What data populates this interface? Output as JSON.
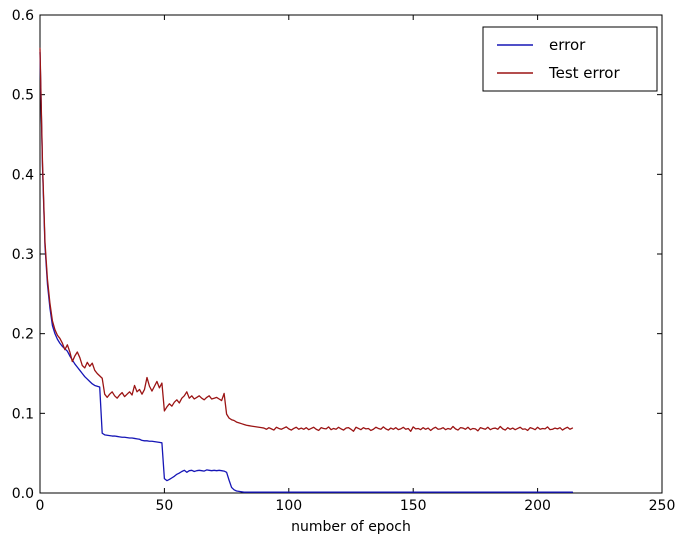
{
  "chart_data": {
    "type": "line",
    "xlabel": "number of epoch",
    "ylabel": "",
    "xlim": [
      0,
      250
    ],
    "ylim": [
      0.0,
      0.6
    ],
    "x_ticks": [
      0,
      50,
      100,
      150,
      200,
      250
    ],
    "x_tick_labels": [
      "0",
      "50",
      "100",
      "150",
      "200",
      "250"
    ],
    "y_ticks": [
      0.0,
      0.1,
      0.2,
      0.3,
      0.4,
      0.5,
      0.6
    ],
    "y_tick_labels": [
      "0.0",
      "0.1",
      "0.2",
      "0.3",
      "0.4",
      "0.5",
      "0.6"
    ],
    "grid": false,
    "legend_position": "upper right",
    "x_step": 1,
    "x_start": 0,
    "series": [
      {
        "name": "error",
        "color": "#1616b6",
        "values": [
          0.553,
          0.41,
          0.31,
          0.262,
          0.232,
          0.21,
          0.2,
          0.193,
          0.188,
          0.184,
          0.181,
          0.178,
          0.172,
          0.167,
          0.162,
          0.158,
          0.154,
          0.15,
          0.146,
          0.143,
          0.14,
          0.137,
          0.135,
          0.134,
          0.133,
          0.075,
          0.073,
          0.0725,
          0.072,
          0.0715,
          0.0715,
          0.071,
          0.0705,
          0.07,
          0.07,
          0.0695,
          0.069,
          0.069,
          0.0685,
          0.068,
          0.0675,
          0.066,
          0.0655,
          0.0655,
          0.065,
          0.065,
          0.0645,
          0.064,
          0.0635,
          0.063,
          0.018,
          0.0155,
          0.017,
          0.019,
          0.021,
          0.0235,
          0.025,
          0.027,
          0.0285,
          0.026,
          0.028,
          0.0285,
          0.027,
          0.028,
          0.0285,
          0.028,
          0.0275,
          0.029,
          0.0285,
          0.028,
          0.0285,
          0.028,
          0.0285,
          0.028,
          0.0275,
          0.026,
          0.016,
          0.007,
          0.004,
          0.0025,
          0.002,
          0.0015,
          0.001,
          0.001,
          0.001,
          0.001,
          0.001,
          0.001,
          0.001,
          0.001,
          0.001,
          0.001,
          0.001,
          0.001,
          0.001,
          0.001,
          0.001,
          0.001,
          0.001,
          0.001,
          0.001,
          0.001,
          0.001,
          0.001,
          0.001,
          0.001,
          0.001,
          0.001,
          0.001,
          0.001,
          0.001,
          0.001,
          0.001,
          0.001,
          0.001,
          0.001,
          0.001,
          0.001,
          0.001,
          0.001,
          0.001,
          0.001,
          0.001,
          0.001,
          0.001,
          0.001,
          0.001,
          0.001,
          0.001,
          0.001,
          0.001,
          0.001,
          0.001,
          0.001,
          0.001,
          0.001,
          0.001,
          0.001,
          0.001,
          0.001,
          0.001,
          0.001,
          0.001,
          0.001,
          0.001,
          0.001,
          0.001,
          0.001,
          0.001,
          0.001,
          0.001,
          0.001,
          0.001,
          0.001,
          0.001,
          0.001,
          0.001,
          0.001,
          0.001,
          0.001,
          0.001,
          0.001,
          0.001,
          0.001,
          0.001,
          0.001,
          0.001,
          0.001,
          0.001,
          0.001,
          0.001,
          0.001,
          0.001,
          0.001,
          0.001,
          0.001,
          0.001,
          0.001,
          0.001,
          0.001,
          0.001,
          0.001,
          0.001,
          0.001,
          0.001,
          0.001,
          0.001,
          0.001,
          0.001,
          0.001,
          0.001,
          0.001,
          0.001,
          0.001,
          0.001,
          0.001,
          0.001,
          0.001,
          0.001,
          0.001,
          0.001,
          0.001,
          0.001,
          0.001,
          0.001,
          0.001,
          0.001,
          0.001,
          0.001,
          0.001,
          0.001,
          0.001,
          0.001,
          0.001,
          0.001
        ]
      },
      {
        "name": "Test error",
        "color": "#9b1414",
        "values": [
          0.558,
          0.415,
          0.315,
          0.268,
          0.238,
          0.216,
          0.205,
          0.198,
          0.194,
          0.188,
          0.18,
          0.186,
          0.177,
          0.165,
          0.172,
          0.177,
          0.17,
          0.16,
          0.157,
          0.164,
          0.159,
          0.163,
          0.154,
          0.15,
          0.147,
          0.144,
          0.124,
          0.12,
          0.124,
          0.127,
          0.122,
          0.119,
          0.123,
          0.126,
          0.121,
          0.124,
          0.127,
          0.123,
          0.135,
          0.127,
          0.13,
          0.124,
          0.13,
          0.145,
          0.134,
          0.128,
          0.134,
          0.14,
          0.132,
          0.138,
          0.103,
          0.108,
          0.112,
          0.109,
          0.114,
          0.117,
          0.113,
          0.119,
          0.122,
          0.127,
          0.119,
          0.122,
          0.118,
          0.12,
          0.122,
          0.119,
          0.117,
          0.12,
          0.122,
          0.118,
          0.119,
          0.12,
          0.118,
          0.116,
          0.125,
          0.099,
          0.094,
          0.092,
          0.091,
          0.089,
          0.088,
          0.087,
          0.086,
          0.085,
          0.0845,
          0.084,
          0.0835,
          0.083,
          0.0825,
          0.082,
          0.0815,
          0.08,
          0.082,
          0.0805,
          0.079,
          0.0825,
          0.081,
          0.08,
          0.0815,
          0.083,
          0.0805,
          0.079,
          0.081,
          0.0825,
          0.08,
          0.0815,
          0.08,
          0.082,
          0.0795,
          0.081,
          0.0825,
          0.08,
          0.0785,
          0.082,
          0.081,
          0.0805,
          0.083,
          0.0795,
          0.081,
          0.08,
          0.0825,
          0.0805,
          0.079,
          0.0815,
          0.082,
          0.08,
          0.0775,
          0.0825,
          0.081,
          0.0795,
          0.082,
          0.0805,
          0.081,
          0.0785,
          0.08,
          0.0825,
          0.081,
          0.08,
          0.083,
          0.0805,
          0.079,
          0.0815,
          0.08,
          0.082,
          0.0795,
          0.0805,
          0.0825,
          0.08,
          0.081,
          0.0775,
          0.083,
          0.0805,
          0.081,
          0.0795,
          0.082,
          0.08,
          0.0815,
          0.0785,
          0.081,
          0.0825,
          0.08,
          0.0805,
          0.082,
          0.0795,
          0.081,
          0.08,
          0.0835,
          0.0805,
          0.079,
          0.082,
          0.0815,
          0.08,
          0.0825,
          0.0795,
          0.081,
          0.0805,
          0.078,
          0.082,
          0.081,
          0.08,
          0.0825,
          0.0795,
          0.081,
          0.0815,
          0.08,
          0.0835,
          0.0805,
          0.079,
          0.082,
          0.08,
          0.0815,
          0.0795,
          0.081,
          0.0825,
          0.08,
          0.0805,
          0.0785,
          0.082,
          0.081,
          0.0795,
          0.0825,
          0.08,
          0.081,
          0.0805,
          0.083,
          0.0795,
          0.08,
          0.0815,
          0.0805,
          0.082,
          0.079,
          0.081,
          0.0825,
          0.08,
          0.0815
        ]
      }
    ]
  }
}
